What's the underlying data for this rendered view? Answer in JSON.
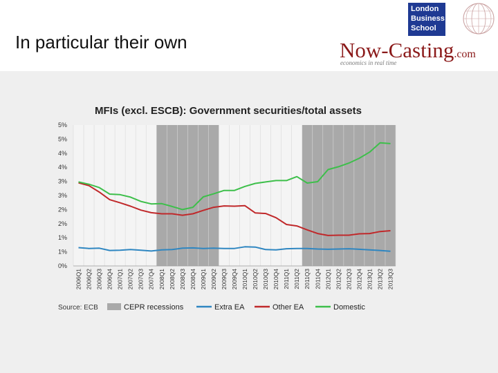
{
  "slide": {
    "title": "In particular their own"
  },
  "logos": {
    "lbs_lines": [
      "London",
      "Business",
      "School"
    ],
    "nowcasting_main": "Now-Casting",
    "nowcasting_suffix": ".com",
    "nowcasting_tagline": "economics in real time"
  },
  "colors": {
    "extra_ea": "#2e86c1",
    "other_ea": "#c0282a",
    "domestic": "#3dbf4a",
    "recession": "#a9a9a9",
    "lbs_blue": "#1f3a93",
    "nowcasting_red": "#8b1a1a"
  },
  "chart_data": {
    "type": "line",
    "title": "MFIs (excl. ESCB): Government securities/total assets",
    "source": "Source: ECB",
    "ytick_labels": [
      "5%",
      "5%",
      "4%",
      "4%",
      "3%",
      "3%",
      "2%",
      "2%",
      "1%",
      "1%",
      "0%"
    ],
    "ylim": [
      0,
      5
    ],
    "categories": [
      "2006Q1",
      "2006Q2",
      "2006Q3",
      "2006Q4",
      "2007Q1",
      "2007Q2",
      "2007Q3",
      "2007Q4",
      "2008Q1",
      "2008Q2",
      "2008Q3",
      "2008Q4",
      "2009Q1",
      "2009Q2",
      "2009Q3",
      "2009Q4",
      "2010Q1",
      "2010Q2",
      "2010Q3",
      "2010Q4",
      "2011Q1",
      "2011Q2",
      "2011Q3",
      "2011Q4",
      "2012Q1",
      "2012Q2",
      "2012Q3",
      "2012Q4",
      "2013Q1",
      "2013Q2",
      "2013Q3"
    ],
    "recessions": [
      {
        "start": "2008Q1",
        "end": "2009Q2"
      },
      {
        "start": "2011Q3",
        "end": "2013Q3"
      }
    ],
    "series": [
      {
        "name": "Extra EA",
        "color_key": "extra_ea",
        "values": [
          0.65,
          0.62,
          0.63,
          0.55,
          0.56,
          0.58,
          0.56,
          0.53,
          0.57,
          0.58,
          0.63,
          0.64,
          0.62,
          0.63,
          0.62,
          0.62,
          0.68,
          0.67,
          0.58,
          0.57,
          0.61,
          0.62,
          0.62,
          0.6,
          0.59,
          0.6,
          0.61,
          0.59,
          0.57,
          0.55,
          0.52
        ]
      },
      {
        "name": "Other EA",
        "color_key": "other_ea",
        "values": [
          2.95,
          2.85,
          2.62,
          2.35,
          2.24,
          2.12,
          1.98,
          1.89,
          1.85,
          1.85,
          1.8,
          1.85,
          1.97,
          2.08,
          2.13,
          2.12,
          2.14,
          1.88,
          1.86,
          1.71,
          1.47,
          1.42,
          1.28,
          1.15,
          1.08,
          1.09,
          1.09,
          1.14,
          1.15,
          1.22,
          1.25
        ]
      },
      {
        "name": "Domestic",
        "color_key": "domestic",
        "values": [
          2.98,
          2.9,
          2.78,
          2.55,
          2.53,
          2.44,
          2.29,
          2.2,
          2.21,
          2.11,
          2.0,
          2.08,
          2.45,
          2.56,
          2.68,
          2.68,
          2.82,
          2.93,
          2.98,
          3.03,
          3.03,
          3.17,
          2.94,
          2.99,
          3.42,
          3.52,
          3.65,
          3.82,
          4.04,
          4.37,
          4.34
        ]
      }
    ]
  }
}
